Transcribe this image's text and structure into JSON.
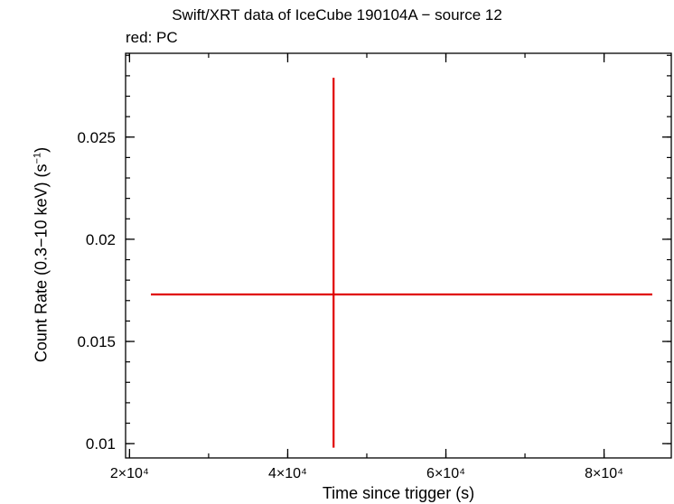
{
  "chart_data": {
    "type": "scatter",
    "title": "Swift/XRT data of IceCube 190104A − source 12",
    "subtitle": "red: PC",
    "xlabel": "Time since trigger (s)",
    "ylabel": "Count Rate (0.3−10 keV) (s⁻¹)",
    "ylabel_text": "Count Rate (0.3−10 keV) (s",
    "ylabel_sup": "−1",
    "ylabel_close": ")",
    "xlim": [
      19500,
      88500
    ],
    "ylim": [
      0.0093,
      0.0291
    ],
    "x_ticks": [
      {
        "value": 20000,
        "label": "2×10⁴"
      },
      {
        "value": 40000,
        "label": "4×10⁴"
      },
      {
        "value": 60000,
        "label": "6×10⁴"
      },
      {
        "value": 80000,
        "label": "8×10⁴"
      }
    ],
    "y_ticks": [
      {
        "value": 0.01,
        "label": "0.01"
      },
      {
        "value": 0.015,
        "label": "0.015"
      },
      {
        "value": 0.02,
        "label": "0.02"
      },
      {
        "value": 0.025,
        "label": "0.025"
      }
    ],
    "x_minor_step": 10000,
    "y_minor_step": 0.001,
    "grid": false,
    "series": [
      {
        "color": "#e00000",
        "points": [
          {
            "x": 45800,
            "x_lo": 22700,
            "x_hi": 86100,
            "y": 0.0173,
            "y_lo": 0.0098,
            "y_hi": 0.0279
          }
        ]
      }
    ]
  }
}
